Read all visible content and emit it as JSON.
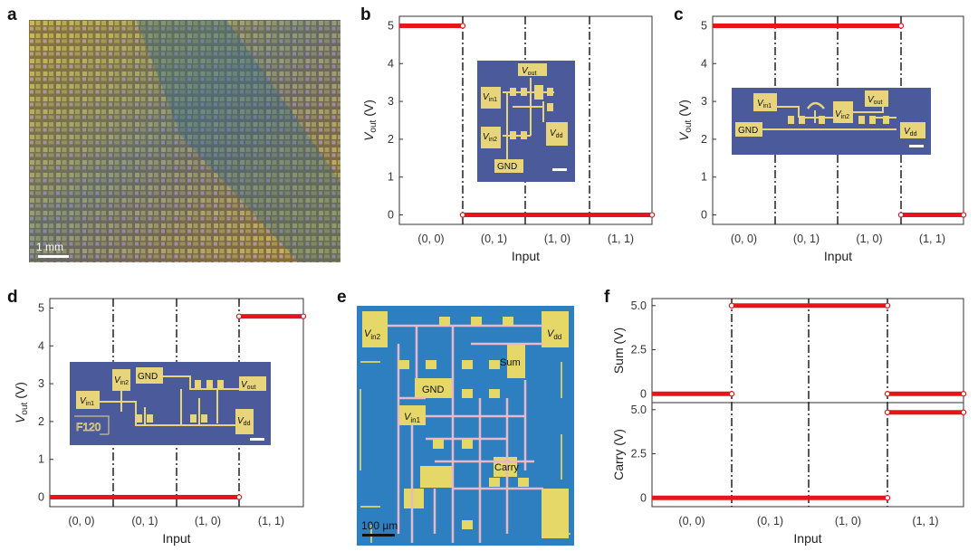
{
  "panels": {
    "a": {
      "letter": "a",
      "scale_bar": "1 mm"
    },
    "b": {
      "letter": "b"
    },
    "c": {
      "letter": "c"
    },
    "d": {
      "letter": "d"
    },
    "e": {
      "letter": "e",
      "scale_bar": "100 µm",
      "labels": {
        "vin2": "V",
        "vin2_sub": "in2",
        "vin1": "V",
        "vin1_sub": "in1",
        "vdd": "V",
        "vdd_sub": "dd",
        "gnd": "GND",
        "sum": "Sum",
        "carry": "Carry"
      }
    },
    "f": {
      "letter": "f"
    }
  },
  "insets": {
    "b": {
      "vout": "V",
      "vout_sub": "out",
      "vin1": "V",
      "vin1_sub": "in1",
      "vin2": "V",
      "vin2_sub": "in2",
      "vdd": "V",
      "vdd_sub": "dd",
      "gnd": "GND"
    },
    "c": {
      "vin1": "V",
      "vin1_sub": "in1",
      "vin2": "V",
      "vin2_sub": "in2",
      "vout": "V",
      "vout_sub": "out",
      "gnd": "GND",
      "vdd": "V",
      "vdd_sub": "dd"
    },
    "d": {
      "vin2": "V",
      "vin2_sub": "in2",
      "gnd": "GND",
      "vout": "V",
      "vout_sub": "out",
      "vin1": "V",
      "vin1_sub": "in1",
      "vdd": "V",
      "vdd_sub": "dd",
      "mark": "F120"
    }
  },
  "colors": {
    "data": "#e8141c",
    "axis": "#333333",
    "inset_bg": "#4a5a9a",
    "pad": "#e8d47a",
    "e_bg": "#2e7fc0",
    "e_pad": "#e6d868",
    "wire": "#e8b8c8"
  },
  "chart_data": [
    {
      "panel": "b",
      "type": "line",
      "categories": [
        "(0, 0)",
        "(0, 1)",
        "(1, 0)",
        "(1, 1)"
      ],
      "xlabel": "Input",
      "ylabel": "V",
      "ylabel_sub": "out",
      "ylabel_unit": " (V)",
      "ylim": [
        -0.25,
        5.25
      ],
      "yticks": [
        0,
        1,
        2,
        3,
        4,
        5
      ],
      "series": [
        {
          "values": [
            5,
            0,
            0,
            0
          ]
        }
      ]
    },
    {
      "panel": "c",
      "type": "line",
      "categories": [
        "(0, 0)",
        "(0, 1)",
        "(1, 0)",
        "(1, 1)"
      ],
      "xlabel": "Input",
      "ylabel": "V",
      "ylabel_sub": "out",
      "ylabel_unit": " (V)",
      "ylim": [
        -0.25,
        5.25
      ],
      "yticks": [
        0,
        1,
        2,
        3,
        4,
        5
      ],
      "series": [
        {
          "values": [
            5,
            5,
            5,
            0
          ]
        }
      ]
    },
    {
      "panel": "d",
      "type": "line",
      "categories": [
        "(0, 0)",
        "(0, 1)",
        "(1, 0)",
        "(1, 1)"
      ],
      "xlabel": "Input",
      "ylabel": "V",
      "ylabel_sub": "out",
      "ylabel_unit": " (V)",
      "ylim": [
        -0.25,
        5.25
      ],
      "yticks": [
        0,
        1,
        2,
        3,
        4,
        5
      ],
      "series": [
        {
          "values": [
            0,
            0,
            0,
            4.78
          ]
        }
      ]
    },
    {
      "panel": "f-sum",
      "type": "line",
      "categories": [
        "(0, 0)",
        "(0, 1)",
        "(1, 0)",
        "(1, 1)"
      ],
      "xlabel": "",
      "ylabel": "Sum (V)",
      "ylim": [
        -0.5,
        5.4
      ],
      "yticks": [
        0,
        2.5,
        5.0
      ],
      "ytick_labels": [
        "0",
        "2.5",
        "5.0"
      ],
      "series": [
        {
          "values": [
            0,
            5,
            5,
            0
          ]
        }
      ]
    },
    {
      "panel": "f-carry",
      "type": "line",
      "categories": [
        "(0, 0)",
        "(0, 1)",
        "(1, 0)",
        "(1, 1)"
      ],
      "xlabel": "Input",
      "ylabel": "Carry (V)",
      "ylim": [
        -0.5,
        5.4
      ],
      "yticks": [
        0,
        2.5,
        5.0
      ],
      "ytick_labels": [
        "0",
        "2.5",
        "5.0"
      ],
      "series": [
        {
          "values": [
            0,
            0,
            0,
            4.85
          ]
        }
      ]
    }
  ]
}
